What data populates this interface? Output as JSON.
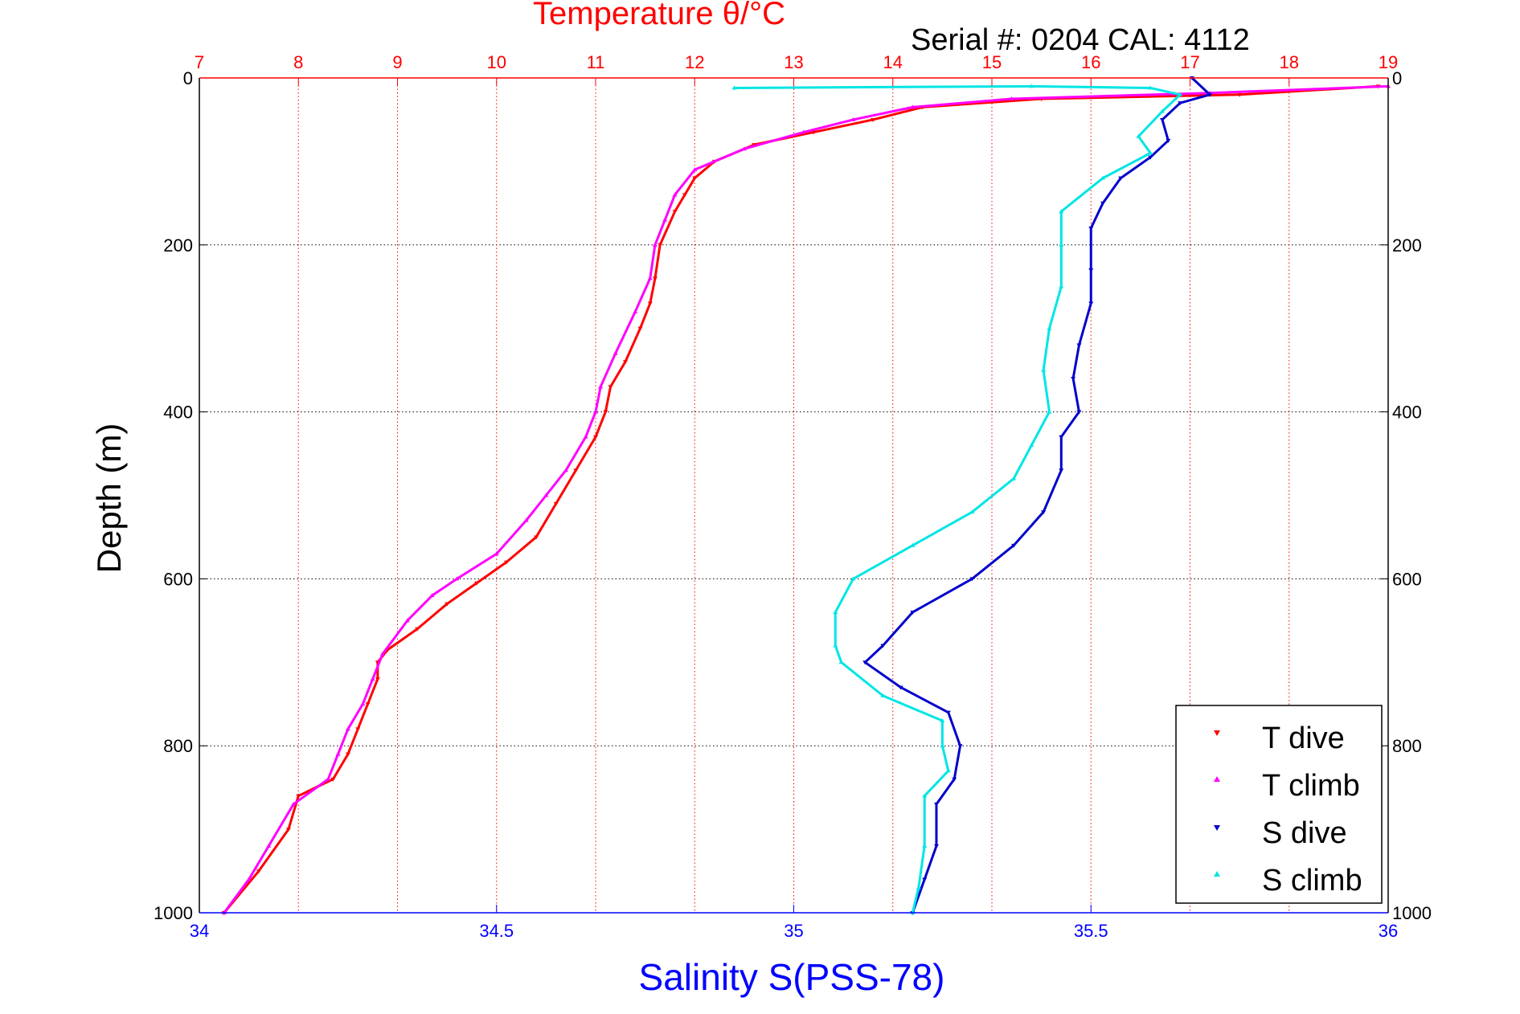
{
  "chart_data": {
    "type": "scatter",
    "top_title": "Temperature θ/°C",
    "serial_text": "Serial #: 0204  CAL: 4112",
    "xlabel": "Salinity S(PSS-78)",
    "ylabel": "Depth (m)",
    "colors": {
      "temperature_axis": "#ff0000",
      "salinity_axis": "#0000ff",
      "t_dive": "#ff0000",
      "t_climb": "#ff00ff",
      "s_dive": "#0000cc",
      "s_climb": "#00e5e5"
    },
    "temperature_axis": {
      "range": [
        7,
        19
      ],
      "ticks": [
        "7",
        "8",
        "9",
        "10",
        "11",
        "12",
        "13",
        "14",
        "15",
        "16",
        "17",
        "18",
        "19"
      ]
    },
    "salinity_axis": {
      "range": [
        34,
        36
      ],
      "ticks": [
        "34",
        "34.5",
        "35",
        "35.5",
        "36"
      ]
    },
    "depth_axis": {
      "range": [
        0,
        1000
      ],
      "reversed": true,
      "ticks": [
        "0",
        "200",
        "400",
        "600",
        "800",
        "1000"
      ]
    },
    "grid": true,
    "legend": {
      "position": "bottom-right",
      "entries": [
        {
          "label": "T dive",
          "color": "#ff0000"
        },
        {
          "label": "T climb",
          "color": "#ff00ff"
        },
        {
          "label": "S dive",
          "color": "#0000cc"
        },
        {
          "label": "S climb",
          "color": "#00e5e5"
        }
      ]
    },
    "series": [
      {
        "name": "T dive",
        "axis": "temperature",
        "marker": "triangle-down",
        "points": [
          [
            18.9,
            10
          ],
          [
            17.5,
            20
          ],
          [
            15.5,
            25
          ],
          [
            14.3,
            35
          ],
          [
            13.8,
            50
          ],
          [
            13.2,
            65
          ],
          [
            12.6,
            80
          ],
          [
            12.2,
            100
          ],
          [
            12.0,
            120
          ],
          [
            11.9,
            140
          ],
          [
            11.8,
            160
          ],
          [
            11.65,
            200
          ],
          [
            11.6,
            240
          ],
          [
            11.55,
            270
          ],
          [
            11.45,
            300
          ],
          [
            11.3,
            340
          ],
          [
            11.15,
            370
          ],
          [
            11.1,
            400
          ],
          [
            11.0,
            430
          ],
          [
            10.8,
            470
          ],
          [
            10.6,
            510
          ],
          [
            10.4,
            550
          ],
          [
            10.1,
            580
          ],
          [
            9.8,
            605
          ],
          [
            9.5,
            630
          ],
          [
            9.2,
            660
          ],
          [
            8.9,
            685
          ],
          [
            8.8,
            700
          ],
          [
            8.8,
            720
          ],
          [
            8.7,
            750
          ],
          [
            8.6,
            780
          ],
          [
            8.5,
            810
          ],
          [
            8.35,
            840
          ],
          [
            8.0,
            860
          ],
          [
            7.9,
            900
          ],
          [
            7.6,
            950
          ],
          [
            7.25,
            1000
          ]
        ]
      },
      {
        "name": "T climb",
        "axis": "temperature",
        "marker": "triangle-up",
        "points": [
          [
            19.0,
            10
          ],
          [
            17.2,
            18
          ],
          [
            15.2,
            25
          ],
          [
            14.2,
            35
          ],
          [
            13.6,
            50
          ],
          [
            13.1,
            65
          ],
          [
            12.5,
            85
          ],
          [
            12.0,
            110
          ],
          [
            11.8,
            140
          ],
          [
            11.7,
            170
          ],
          [
            11.6,
            200
          ],
          [
            11.55,
            240
          ],
          [
            11.4,
            280
          ],
          [
            11.2,
            330
          ],
          [
            11.05,
            370
          ],
          [
            11.0,
            400
          ],
          [
            10.9,
            430
          ],
          [
            10.7,
            470
          ],
          [
            10.5,
            500
          ],
          [
            10.3,
            530
          ],
          [
            10.0,
            570
          ],
          [
            9.6,
            600
          ],
          [
            9.35,
            620
          ],
          [
            9.1,
            650
          ],
          [
            8.85,
            690
          ],
          [
            8.75,
            720
          ],
          [
            8.65,
            750
          ],
          [
            8.5,
            780
          ],
          [
            8.4,
            810
          ],
          [
            8.3,
            840
          ],
          [
            7.95,
            870
          ],
          [
            7.7,
            920
          ],
          [
            7.5,
            960
          ],
          [
            7.25,
            1000
          ]
        ]
      },
      {
        "name": "S dive",
        "axis": "salinity",
        "marker": "triangle-down",
        "points": [
          [
            35.67,
            0
          ],
          [
            35.7,
            20
          ],
          [
            35.65,
            30
          ],
          [
            35.62,
            50
          ],
          [
            35.63,
            75
          ],
          [
            35.6,
            95
          ],
          [
            35.55,
            120
          ],
          [
            35.52,
            150
          ],
          [
            35.5,
            180
          ],
          [
            35.5,
            230
          ],
          [
            35.5,
            270
          ],
          [
            35.48,
            320
          ],
          [
            35.47,
            360
          ],
          [
            35.48,
            400
          ],
          [
            35.45,
            430
          ],
          [
            35.45,
            470
          ],
          [
            35.42,
            520
          ],
          [
            35.37,
            560
          ],
          [
            35.3,
            600
          ],
          [
            35.2,
            640
          ],
          [
            35.15,
            680
          ],
          [
            35.12,
            700
          ],
          [
            35.18,
            730
          ],
          [
            35.26,
            760
          ],
          [
            35.28,
            800
          ],
          [
            35.27,
            840
          ],
          [
            35.24,
            870
          ],
          [
            35.24,
            920
          ],
          [
            35.22,
            960
          ],
          [
            35.2,
            1000
          ]
        ]
      },
      {
        "name": "S climb",
        "axis": "salinity",
        "marker": "triangle-up",
        "points": [
          [
            34.9,
            12
          ],
          [
            35.4,
            10
          ],
          [
            35.6,
            12
          ],
          [
            35.65,
            20
          ],
          [
            35.62,
            40
          ],
          [
            35.58,
            70
          ],
          [
            35.6,
            90
          ],
          [
            35.52,
            120
          ],
          [
            35.45,
            160
          ],
          [
            35.45,
            200
          ],
          [
            35.45,
            250
          ],
          [
            35.43,
            300
          ],
          [
            35.42,
            350
          ],
          [
            35.43,
            400
          ],
          [
            35.4,
            440
          ],
          [
            35.37,
            480
          ],
          [
            35.3,
            520
          ],
          [
            35.2,
            560
          ],
          [
            35.1,
            600
          ],
          [
            35.07,
            640
          ],
          [
            35.07,
            680
          ],
          [
            35.08,
            700
          ],
          [
            35.15,
            740
          ],
          [
            35.25,
            770
          ],
          [
            35.25,
            800
          ],
          [
            35.26,
            830
          ],
          [
            35.22,
            860
          ],
          [
            35.22,
            920
          ],
          [
            35.21,
            970
          ],
          [
            35.2,
            1000
          ]
        ]
      }
    ]
  }
}
